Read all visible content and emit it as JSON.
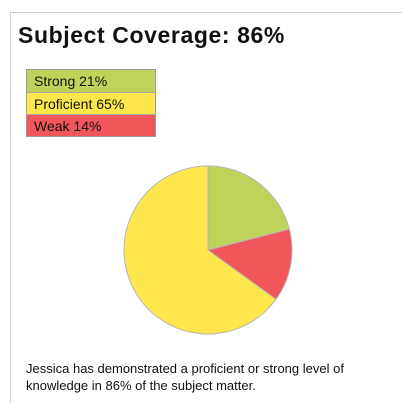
{
  "title": "Subject Coverage: 86%",
  "caption": "Jessica has demonstrated a proficient or strong level of knowledge in 86% of the subject matter.",
  "chart_data": {
    "type": "pie",
    "title": "Subject Coverage: 86%",
    "legend_position": "top-left",
    "slices": [
      {
        "name": "Strong",
        "label": "Strong 21%",
        "value": 21,
        "color": "#bfd35b"
      },
      {
        "name": "Proficient",
        "label": "Proficient 65%",
        "value": 65,
        "color": "#fde74c"
      },
      {
        "name": "Weak",
        "label": "Weak 14%",
        "value": 14,
        "color": "#f0565a"
      }
    ]
  }
}
